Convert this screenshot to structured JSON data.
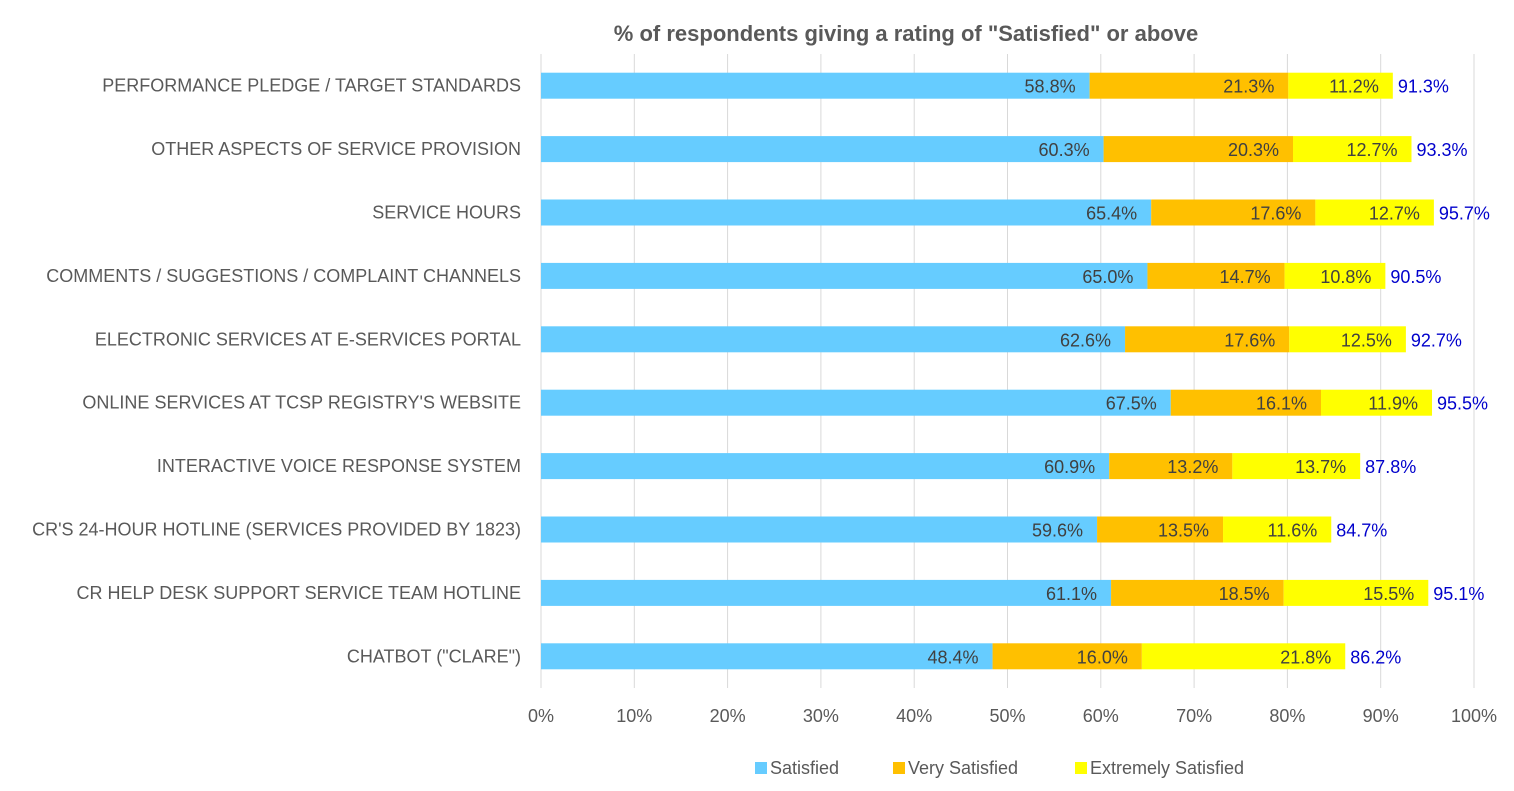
{
  "chart_data": {
    "type": "bar",
    "orientation": "horizontal",
    "stacked": true,
    "title": "% of respondents giving a rating of \"Satisfied\" or above",
    "xlabel": "",
    "ylabel": "",
    "xlim": [
      0,
      100
    ],
    "x_ticks": [
      "0%",
      "10%",
      "20%",
      "30%",
      "40%",
      "50%",
      "60%",
      "70%",
      "80%",
      "90%",
      "100%"
    ],
    "grid": "vertical",
    "legend_position": "bottom",
    "categories": [
      "PERFORMANCE PLEDGE / TARGET STANDARDS",
      "OTHER ASPECTS OF SERVICE PROVISION",
      "SERVICE HOURS",
      "COMMENTS / SUGGESTIONS / COMPLAINT CHANNELS",
      "ELECTRONIC SERVICES AT E-SERVICES PORTAL",
      "ONLINE SERVICES AT TCSP REGISTRY'S WEBSITE",
      "INTERACTIVE VOICE RESPONSE SYSTEM",
      "CR'S 24-HOUR HOTLINE (SERVICES PROVIDED BY 1823)",
      "CR HELP DESK SUPPORT SERVICE TEAM HOTLINE",
      "CHATBOT (\"CLARE\")"
    ],
    "series": [
      {
        "name": "Satisfied",
        "color": "#66CCFF",
        "values": [
          58.8,
          60.3,
          65.4,
          65.0,
          62.6,
          67.5,
          60.9,
          59.6,
          61.1,
          48.4
        ],
        "labels": [
          "58.8%",
          "60.3%",
          "65.4%",
          "65.0%",
          "62.6%",
          "67.5%",
          "60.9%",
          "59.6%",
          "61.1%",
          "48.4%"
        ]
      },
      {
        "name": "Very Satisfied",
        "color": "#FFC000",
        "values": [
          21.3,
          20.3,
          17.6,
          14.7,
          17.6,
          16.1,
          13.2,
          13.5,
          18.5,
          16.0
        ],
        "labels": [
          "21.3%",
          "20.3%",
          "17.6%",
          "14.7%",
          "17.6%",
          "16.1%",
          "13.2%",
          "13.5%",
          "18.5%",
          "16.0%"
        ]
      },
      {
        "name": "Extremely Satisfied",
        "color": "#FFFF00",
        "values": [
          11.2,
          12.7,
          12.7,
          10.8,
          12.5,
          11.9,
          13.7,
          11.6,
          15.5,
          21.8
        ],
        "labels": [
          "11.2%",
          "12.7%",
          "12.7%",
          "10.8%",
          "12.5%",
          "11.9%",
          "13.7%",
          "11.6%",
          "15.5%",
          "21.8%"
        ]
      }
    ],
    "totals": [
      91.3,
      93.3,
      95.7,
      90.5,
      92.7,
      95.5,
      87.8,
      84.7,
      95.1,
      86.2
    ],
    "total_labels": [
      "91.3%",
      "93.3%",
      "95.7%",
      "90.5%",
      "92.7%",
      "95.5%",
      "87.8%",
      "84.7%",
      "95.1%",
      "86.2%"
    ],
    "total_label_color": "#0000CC",
    "grid_color": "#D9D9D9"
  }
}
